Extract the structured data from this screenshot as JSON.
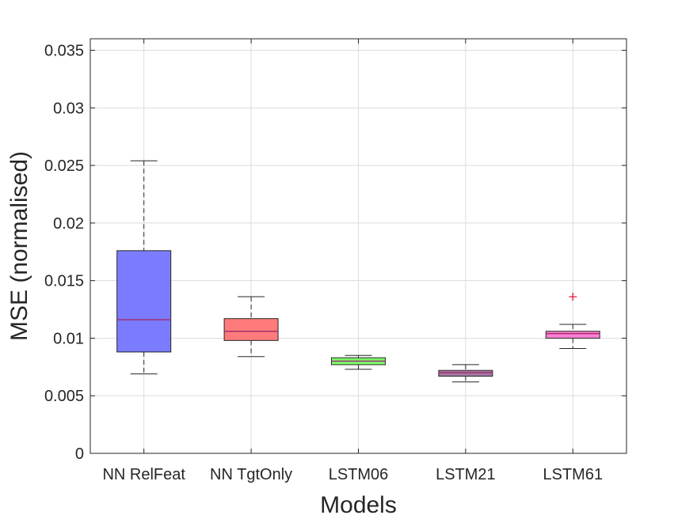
{
  "chart_data": {
    "type": "boxplot",
    "title": "",
    "xlabel": "Models",
    "ylabel": "MSE (normalised)",
    "ylim": [
      0,
      0.036
    ],
    "yticks": [
      0,
      0.005,
      0.01,
      0.015,
      0.02,
      0.025,
      0.03,
      0.035
    ],
    "ytick_labels": [
      "0",
      "0.005",
      "0.01",
      "0.015",
      "0.02",
      "0.025",
      "0.03",
      "0.035"
    ],
    "grid": true,
    "categories": [
      "NN RelFeat",
      "NN TgtOnly",
      "LSTM06",
      "LSTM21",
      "LSTM61"
    ],
    "boxes": [
      {
        "name": "NN RelFeat",
        "whisker_low": 0.0069,
        "q1": 0.0088,
        "median": 0.0116,
        "q3": 0.0176,
        "whisker_high": 0.0254,
        "outliers": [],
        "color": "#7b7bff"
      },
      {
        "name": "NN TgtOnly",
        "whisker_low": 0.0084,
        "q1": 0.0098,
        "median": 0.0106,
        "q3": 0.0117,
        "whisker_high": 0.0136,
        "outliers": [],
        "color": "#ff7b7b"
      },
      {
        "name": "LSTM06",
        "whisker_low": 0.0073,
        "q1": 0.0077,
        "median": 0.008,
        "q3": 0.0083,
        "whisker_high": 0.0085,
        "outliers": [],
        "color": "#7dff6b"
      },
      {
        "name": "LSTM21",
        "whisker_low": 0.0062,
        "q1": 0.0067,
        "median": 0.007,
        "q3": 0.0072,
        "whisker_high": 0.0077,
        "outliers": [],
        "color": "#a47ba4"
      },
      {
        "name": "LSTM61",
        "whisker_low": 0.0091,
        "q1": 0.01,
        "median": 0.0104,
        "q3": 0.0106,
        "whisker_high": 0.0112,
        "outliers": [
          0.0136
        ],
        "color": "#ff80d5"
      }
    ],
    "median_color": "#a03070",
    "outlier_color": "#e8001f"
  }
}
